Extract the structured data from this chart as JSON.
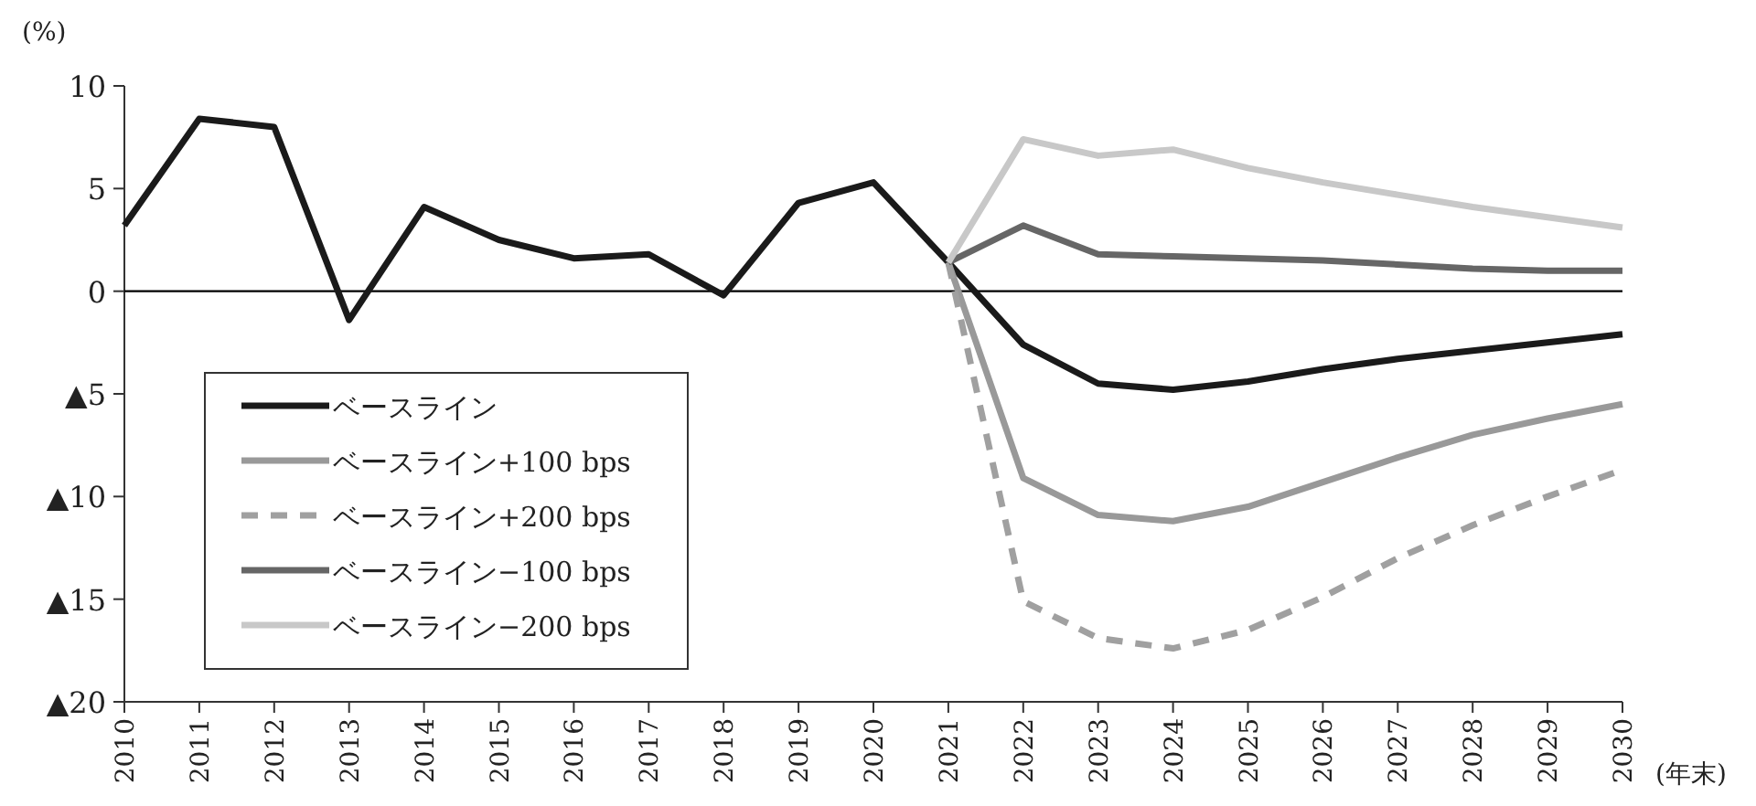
{
  "chart_data": {
    "type": "line",
    "ylabel": "(%)",
    "xlabel": "(年末)",
    "categories": [
      "2010",
      "2011",
      "2012",
      "2013",
      "2014",
      "2015",
      "2016",
      "2017",
      "2018",
      "2019",
      "2020",
      "2021",
      "2022",
      "2023",
      "2024",
      "2025",
      "2026",
      "2027",
      "2028",
      "2029",
      "2030"
    ],
    "ylim": [
      -20,
      10
    ],
    "yticks": [
      {
        "value": -20,
        "label": "▲20"
      },
      {
        "value": -15,
        "label": "▲15"
      },
      {
        "value": -10,
        "label": "▲10"
      },
      {
        "value": -5,
        "label": "▲5"
      },
      0,
      5,
      10
    ],
    "legend": "bottom left",
    "grid": false,
    "marker": "none",
    "line_style": "solid",
    "ref_lines": [
      {
        "axis": "y",
        "value": 0,
        "color": "#000000"
      }
    ],
    "series": [
      {
        "name": "ベースライン",
        "color": "#1a1a1a",
        "values": [
          3.2,
          8.4,
          8.0,
          -1.4,
          4.1,
          2.5,
          1.6,
          1.8,
          -0.2,
          4.3,
          5.3,
          1.4,
          -2.6,
          -4.5,
          -4.8,
          -4.4,
          -3.8,
          -3.3,
          -2.9,
          -2.5,
          -2.1
        ]
      },
      {
        "name": "ベースライン+100 bps",
        "color": "#999999",
        "values": [
          null,
          null,
          null,
          null,
          null,
          null,
          null,
          null,
          null,
          null,
          null,
          1.4,
          -9.1,
          -10.9,
          -11.2,
          -10.5,
          -9.3,
          -8.1,
          -7.0,
          -6.2,
          -5.5
        ]
      },
      {
        "name": "ベースライン+200 bps",
        "color": "#a0a0a0",
        "line_style": "dashed",
        "values": [
          null,
          null,
          null,
          null,
          null,
          null,
          null,
          null,
          null,
          null,
          null,
          1.4,
          -15.1,
          -16.9,
          -17.4,
          -16.5,
          -14.9,
          -13.0,
          -11.4,
          -10.0,
          -8.7
        ]
      },
      {
        "name": "ベースライン−100 bps",
        "color": "#666666",
        "values": [
          null,
          null,
          null,
          null,
          null,
          null,
          null,
          null,
          null,
          null,
          null,
          1.4,
          3.2,
          1.8,
          1.7,
          1.6,
          1.5,
          1.3,
          1.1,
          1.0,
          1.0
        ]
      },
      {
        "name": "ベースライン−200 bps",
        "color": "#c8c8c8",
        "values": [
          null,
          null,
          null,
          null,
          null,
          null,
          null,
          null,
          null,
          null,
          null,
          1.4,
          7.4,
          6.6,
          6.9,
          6.0,
          5.3,
          4.7,
          4.1,
          3.6,
          3.1
        ]
      }
    ]
  }
}
